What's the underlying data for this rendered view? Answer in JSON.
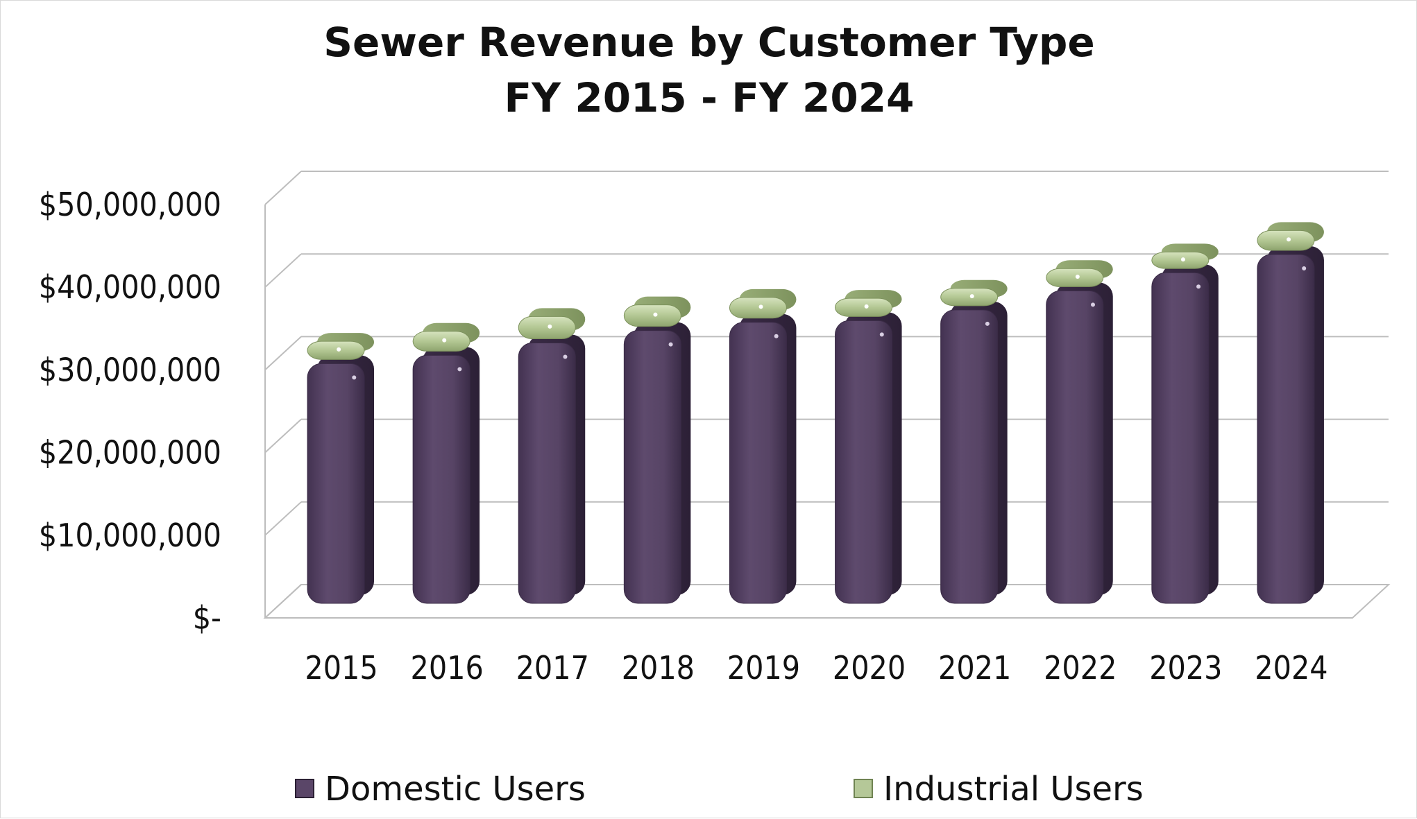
{
  "chart_data": {
    "type": "bar",
    "title": "Sewer Revenue by Customer Type",
    "subtitle": "FY 2015 - FY 2024",
    "categories": [
      "2015",
      "2016",
      "2017",
      "2018",
      "2019",
      "2020",
      "2021",
      "2022",
      "2023",
      "2024"
    ],
    "series": [
      {
        "name": "Domestic Users",
        "color": "#5a4668",
        "values": [
          29000000,
          30000000,
          31500000,
          33000000,
          34000000,
          34200000,
          35500000,
          37800000,
          40000000,
          42200000
        ]
      },
      {
        "name": "Industrial Users",
        "color": "#b5c898",
        "values": [
          2200000,
          2400000,
          2700000,
          2600000,
          2500000,
          2200000,
          2100000,
          2200000,
          2000000,
          2400000
        ]
      }
    ],
    "y_tick_labels": [
      "$-",
      "$10,000,000",
      "$20,000,000",
      "$30,000,000",
      "$40,000,000",
      "$50,000,000"
    ],
    "y_tick_values": [
      0,
      10000000,
      20000000,
      30000000,
      40000000,
      50000000
    ],
    "ylim": [
      0,
      50000000
    ],
    "xlabel": "",
    "ylabel": "",
    "grid": true,
    "legend_position": "bottom"
  }
}
